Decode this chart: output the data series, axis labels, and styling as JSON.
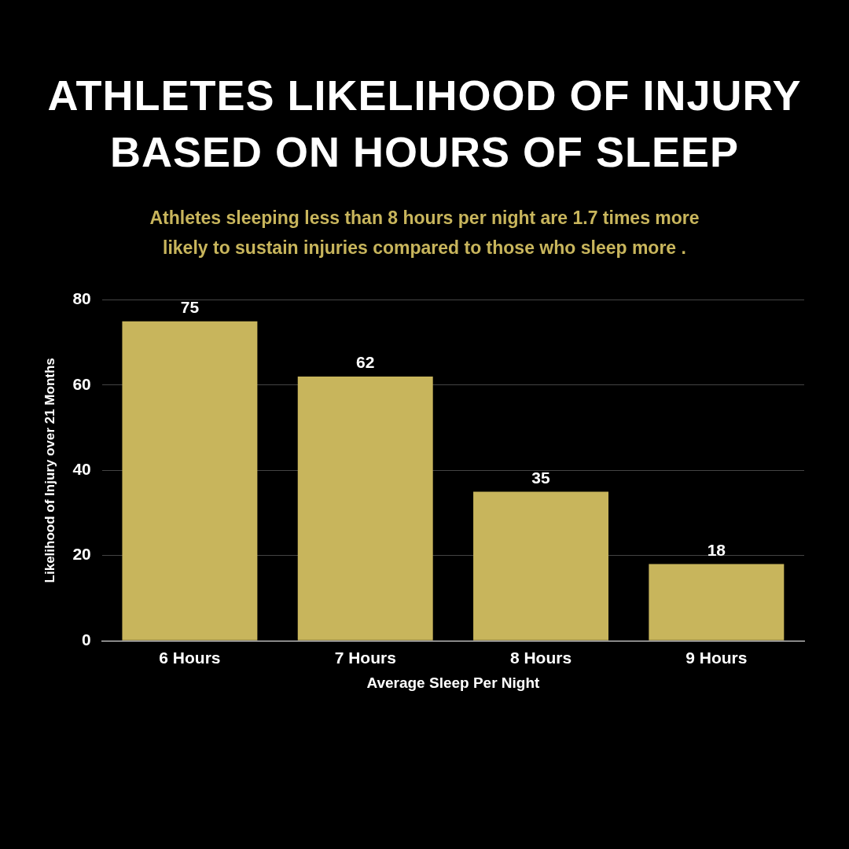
{
  "chart_data": {
    "type": "bar",
    "title": "ATHLETES LIKELIHOOD OF INJURY BASED ON HOURS OF SLEEP",
    "subtitle": "Athletes sleeping less than 8 hours per night are 1.7 times more likely to sustain injuries compared to those who sleep more .",
    "xlabel": "Average Sleep Per Night",
    "ylabel": "Likelihood of Injury over 21 Months",
    "categories": [
      "6 Hours",
      "7 Hours",
      "8 Hours",
      "9 Hours"
    ],
    "values": [
      75,
      62,
      35,
      18
    ],
    "color": "#c8b55c",
    "ylim": [
      0,
      80
    ],
    "yticks": [
      0,
      20,
      40,
      60,
      80
    ],
    "grid": "y",
    "data_labels": true
  }
}
